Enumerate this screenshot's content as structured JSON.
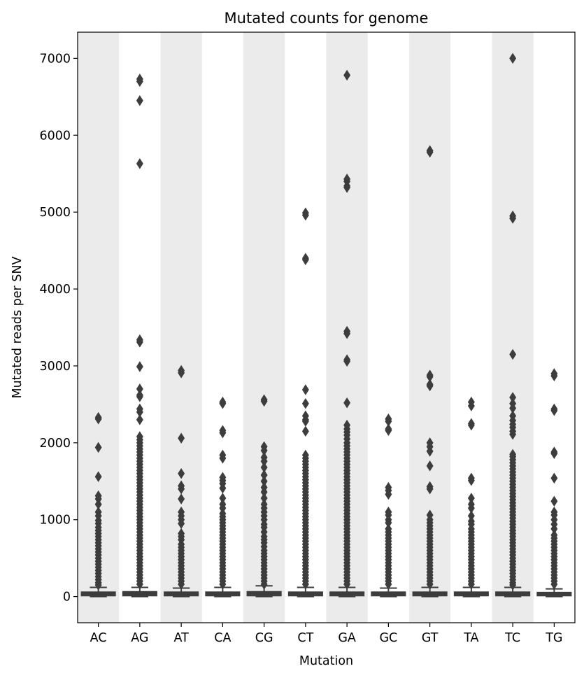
{
  "chart_data": {
    "type": "box",
    "title": "Mutated counts for genome",
    "xlabel": "Mutation",
    "ylabel": "Mutated reads per SNV",
    "ylim": [
      -340,
      7340
    ],
    "yticks": [
      0,
      1000,
      2000,
      3000,
      4000,
      5000,
      6000,
      7000
    ],
    "alternating_band_color": "#ebebeb",
    "box_color": "#3d3d3d",
    "grid": false,
    "legend": "none",
    "categories": [
      "AC",
      "AG",
      "AT",
      "CA",
      "CG",
      "CT",
      "GA",
      "GC",
      "GT",
      "TA",
      "TC",
      "TG"
    ],
    "series": [
      {
        "category": "AC",
        "whisker_low": 0,
        "q1": 10,
        "median": 40,
        "q3": 60,
        "whisker_high": 120,
        "outliers": [
          2330,
          2310,
          1940,
          1560,
          1310,
          1270,
          1200,
          1100,
          1050,
          990,
          950,
          900,
          860,
          820,
          780,
          740,
          700,
          660,
          620,
          580,
          540,
          500,
          460,
          420,
          380,
          340,
          300,
          260,
          220,
          180,
          150
        ]
      },
      {
        "category": "AG",
        "whisker_low": 0,
        "q1": 10,
        "median": 45,
        "q3": 65,
        "whisker_high": 120,
        "outliers": [
          6730,
          6700,
          6450,
          5630,
          3340,
          3310,
          2990,
          2700,
          2620,
          2600,
          2440,
          2400,
          2300,
          2080,
          2040,
          2000,
          1960,
          1920,
          1880,
          1840,
          1800,
          1760,
          1720,
          1680,
          1640,
          1600,
          1560,
          1520,
          1480,
          1440,
          1400,
          1360,
          1320,
          1280,
          1240,
          1200,
          1160,
          1120,
          1080,
          1040,
          1000,
          960,
          920,
          880,
          840,
          800,
          760,
          720,
          680,
          640,
          600,
          560,
          520,
          480,
          440,
          400,
          360,
          320,
          280,
          240,
          200,
          160
        ]
      },
      {
        "category": "AT",
        "whisker_low": 0,
        "q1": 10,
        "median": 40,
        "q3": 60,
        "whisker_high": 110,
        "outliers": [
          2940,
          2910,
          2060,
          1600,
          1440,
          1400,
          1270,
          1100,
          1050,
          1000,
          950,
          820,
          780,
          740,
          680,
          640,
          600,
          560,
          520,
          480,
          440,
          400,
          360,
          320,
          280,
          240,
          200,
          160
        ]
      },
      {
        "category": "CA",
        "whisker_low": 0,
        "q1": 10,
        "median": 40,
        "q3": 60,
        "whisker_high": 120,
        "outliers": [
          2530,
          2510,
          2160,
          2130,
          1840,
          1800,
          1550,
          1510,
          1470,
          1410,
          1280,
          1200,
          1150,
          1080,
          1040,
          1000,
          960,
          920,
          880,
          840,
          800,
          760,
          720,
          680,
          640,
          600,
          560,
          520,
          480,
          440,
          400,
          360,
          320,
          280,
          240,
          200,
          160
        ]
      },
      {
        "category": "CG",
        "whisker_low": 0,
        "q1": 10,
        "median": 45,
        "q3": 65,
        "whisker_high": 140,
        "outliers": [
          2560,
          2540,
          1950,
          1900,
          1810,
          1760,
          1680,
          1580,
          1500,
          1420,
          1360,
          1280,
          1200,
          1150,
          1100,
          1050,
          1000,
          940,
          900,
          840,
          780,
          740,
          700,
          650,
          600,
          560,
          520,
          480,
          440,
          400,
          360,
          320,
          280,
          240,
          200,
          160
        ]
      },
      {
        "category": "CT",
        "whisker_low": 0,
        "q1": 10,
        "median": 40,
        "q3": 60,
        "whisker_high": 120,
        "outliers": [
          4990,
          4960,
          4400,
          4380,
          2690,
          2510,
          2350,
          2300,
          2280,
          2150,
          1840,
          1800,
          1760,
          1720,
          1680,
          1640,
          1600,
          1560,
          1520,
          1480,
          1440,
          1400,
          1360,
          1320,
          1280,
          1240,
          1200,
          1160,
          1120,
          1080,
          1040,
          1000,
          960,
          920,
          880,
          840,
          800,
          760,
          720,
          680,
          640,
          600,
          560,
          520,
          480,
          440,
          400,
          360,
          320,
          280,
          240,
          200,
          160
        ]
      },
      {
        "category": "GA",
        "whisker_low": 0,
        "q1": 10,
        "median": 40,
        "q3": 60,
        "whisker_high": 120,
        "outliers": [
          6780,
          5430,
          5400,
          5340,
          5320,
          3450,
          3420,
          3080,
          3060,
          2520,
          2230,
          2180,
          2140,
          2100,
          2050,
          2000,
          1960,
          1920,
          1880,
          1840,
          1800,
          1760,
          1720,
          1680,
          1640,
          1600,
          1560,
          1520,
          1480,
          1440,
          1400,
          1360,
          1320,
          1280,
          1240,
          1200,
          1160,
          1120,
          1080,
          1040,
          1000,
          960,
          920,
          880,
          840,
          800,
          760,
          720,
          680,
          640,
          600,
          560,
          520,
          480,
          440,
          400,
          360,
          320,
          280,
          240,
          200,
          160
        ]
      },
      {
        "category": "GC",
        "whisker_low": 0,
        "q1": 10,
        "median": 40,
        "q3": 60,
        "whisker_high": 110,
        "outliers": [
          2310,
          2280,
          2180,
          2160,
          1420,
          1380,
          1330,
          1100,
          1060,
          1000,
          960,
          880,
          840,
          800,
          760,
          720,
          680,
          640,
          600,
          560,
          520,
          480,
          440,
          400,
          360,
          320,
          280,
          240,
          200,
          160
        ]
      },
      {
        "category": "GT",
        "whisker_low": 0,
        "q1": 10,
        "median": 40,
        "q3": 60,
        "whisker_high": 120,
        "outliers": [
          5800,
          5780,
          2880,
          2860,
          2760,
          2740,
          2000,
          1950,
          1890,
          1700,
          1430,
          1400,
          1060,
          1000,
          960,
          920,
          880,
          840,
          800,
          760,
          720,
          680,
          640,
          600,
          560,
          520,
          480,
          440,
          400,
          360,
          320,
          280,
          240,
          200,
          160
        ]
      },
      {
        "category": "TA",
        "whisker_low": 0,
        "q1": 10,
        "median": 40,
        "q3": 60,
        "whisker_high": 120,
        "outliers": [
          2530,
          2480,
          2250,
          2230,
          1540,
          1510,
          1280,
          1200,
          1150,
          1050,
          980,
          940,
          880,
          840,
          800,
          760,
          720,
          680,
          640,
          600,
          560,
          520,
          480,
          440,
          400,
          360,
          320,
          280,
          240,
          200,
          160
        ]
      },
      {
        "category": "TC",
        "whisker_low": 0,
        "q1": 10,
        "median": 40,
        "q3": 60,
        "whisker_high": 120,
        "outliers": [
          7000,
          4950,
          4920,
          3150,
          2590,
          2510,
          2450,
          2350,
          2290,
          2240,
          2200,
          2150,
          2110,
          1850,
          1820,
          1780,
          1740,
          1700,
          1660,
          1620,
          1580,
          1540,
          1500,
          1460,
          1420,
          1380,
          1340,
          1300,
          1260,
          1220,
          1180,
          1140,
          1100,
          1060,
          1020,
          980,
          940,
          900,
          860,
          820,
          780,
          740,
          700,
          660,
          620,
          580,
          540,
          500,
          460,
          420,
          380,
          340,
          300,
          260,
          220,
          180,
          150
        ]
      },
      {
        "category": "TG",
        "whisker_low": 0,
        "q1": 10,
        "median": 35,
        "q3": 55,
        "whisker_high": 100,
        "outliers": [
          2900,
          2870,
          2440,
          2420,
          1880,
          1860,
          1540,
          1240,
          1100,
          1060,
          1000,
          940,
          880,
          800,
          760,
          720,
          680,
          640,
          600,
          560,
          520,
          480,
          440,
          400,
          360,
          320,
          280,
          240,
          200,
          160
        ]
      }
    ]
  }
}
